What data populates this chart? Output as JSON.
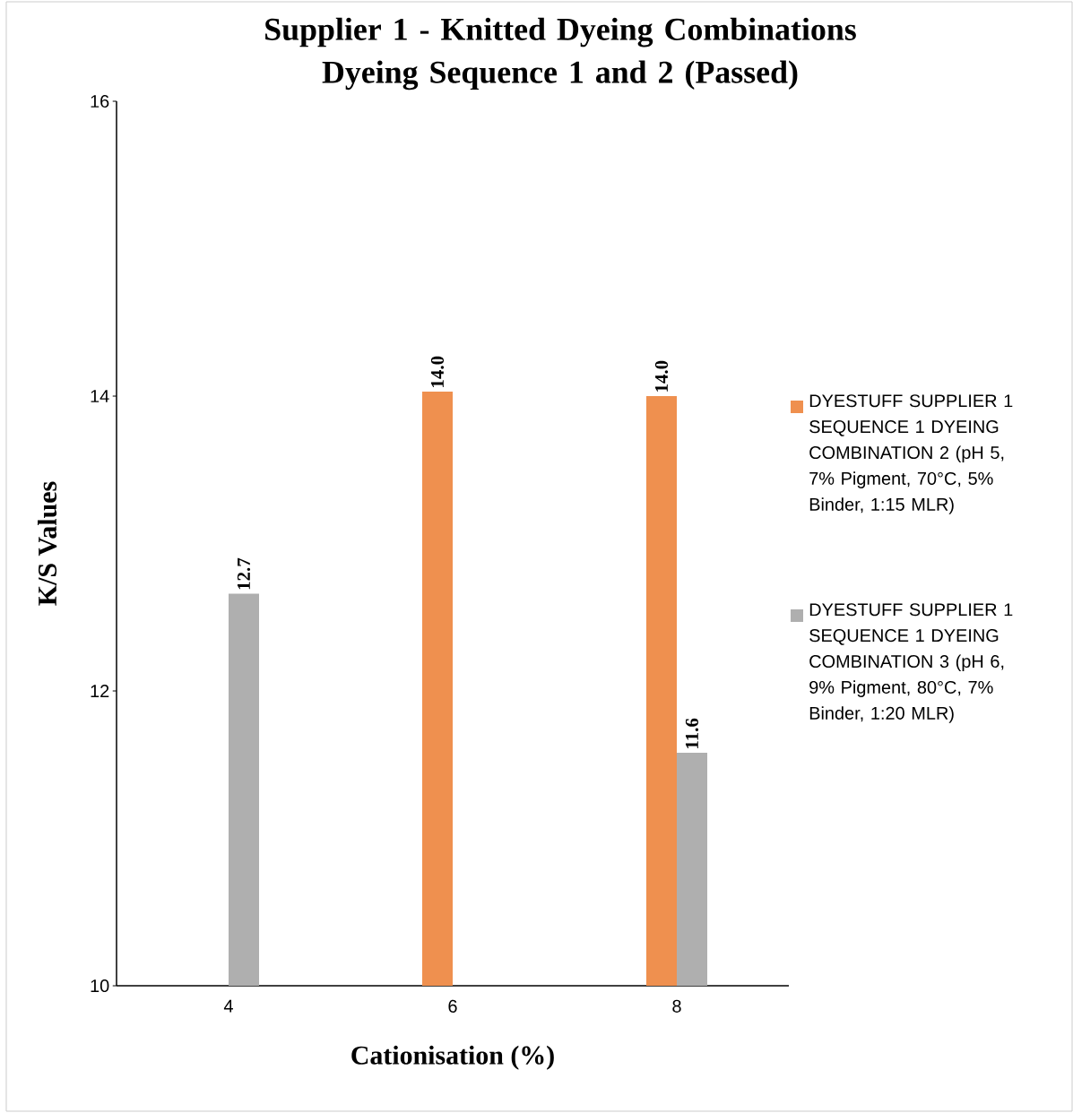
{
  "chart_data": {
    "type": "bar",
    "title": "Supplier 1 - Knitted Dyeing Combinations Dyeing Sequence 1 and 2 (Passed)",
    "xlabel": "Cationisation (%)",
    "ylabel": "K/S Values",
    "categories": [
      "4",
      "6",
      "8"
    ],
    "series": [
      {
        "name": "DYESTUFF SUPPLIER 1 SEQUENCE 1 DYEING COMBINATION 2 (pH 5, 7% Pigment, 70°C, 5% Binder, 1:15 MLR)",
        "color": "#ef904f",
        "values": [
          null,
          14.03,
          14.0
        ],
        "value_labels": [
          null,
          "14.0",
          "14.0"
        ]
      },
      {
        "name": "DYESTUFF SUPPLIER 1 SEQUENCE 1 DYEING COMBINATION 3 (pH 6, 9% Pigment, 80°C, 7% Binder, 1:20 MLR)",
        "color": "#afafaf",
        "values": [
          12.66,
          null,
          11.58
        ],
        "value_labels": [
          "12.7",
          null,
          "11.6"
        ]
      }
    ],
    "ylim": [
      10,
      16
    ],
    "yticks": [
      10,
      12,
      14,
      16
    ],
    "legend": "right"
  }
}
